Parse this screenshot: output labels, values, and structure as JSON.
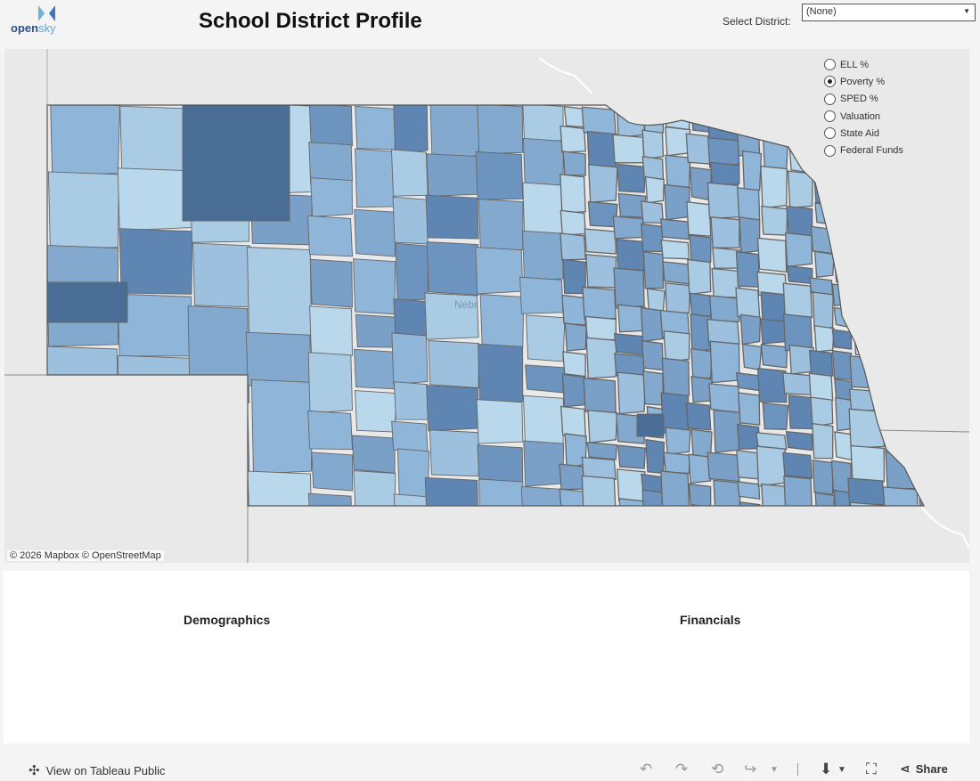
{
  "header": {
    "logo_open": "open",
    "logo_sky": "sky",
    "title": "School District Profile",
    "select_label": "Select District:",
    "select_value": "(None)"
  },
  "map": {
    "credit": "© 2026 Mapbox  © OpenStreetMap",
    "faint_label": "Nebr",
    "fill_colors": [
      "#b9d8ec",
      "#a9cbe4",
      "#9dc0de",
      "#8fb5d8",
      "#83a9cf",
      "#7aa0c8",
      "#6d94be",
      "#5f86b2"
    ],
    "darkest_color": "#4a6d96",
    "border_color": "#666666"
  },
  "legend": {
    "selected": "Poverty %",
    "options": [
      "ELL %",
      "Poverty %",
      "SPED %",
      "Valuation",
      "State Aid",
      "Federal Funds"
    ]
  },
  "panel": {
    "demographics_title": "Demographics",
    "financials_title": "Financials"
  },
  "footer": {
    "view_label": "View on Tableau Public",
    "share_label": "Share"
  }
}
